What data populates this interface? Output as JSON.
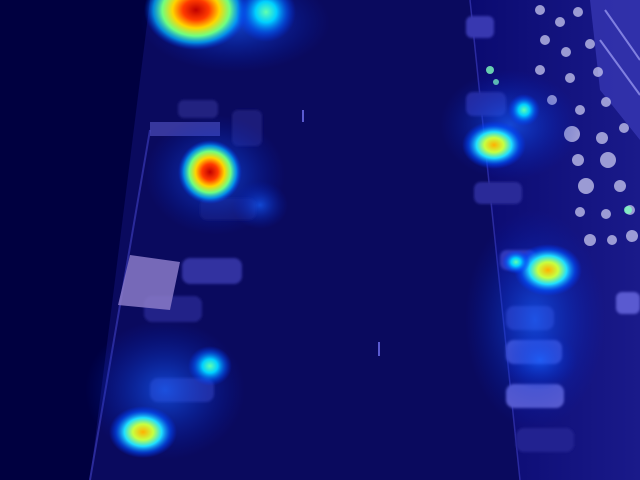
{
  "image": {
    "kind": "aerial night street photo with attention heatmap overlay",
    "heatmap_colormap": [
      "#00007a",
      "#0030ff",
      "#00c8ff",
      "#7dff7d",
      "#ffe600",
      "#ff4000",
      "#c00000"
    ],
    "base_color": "#00004a"
  }
}
